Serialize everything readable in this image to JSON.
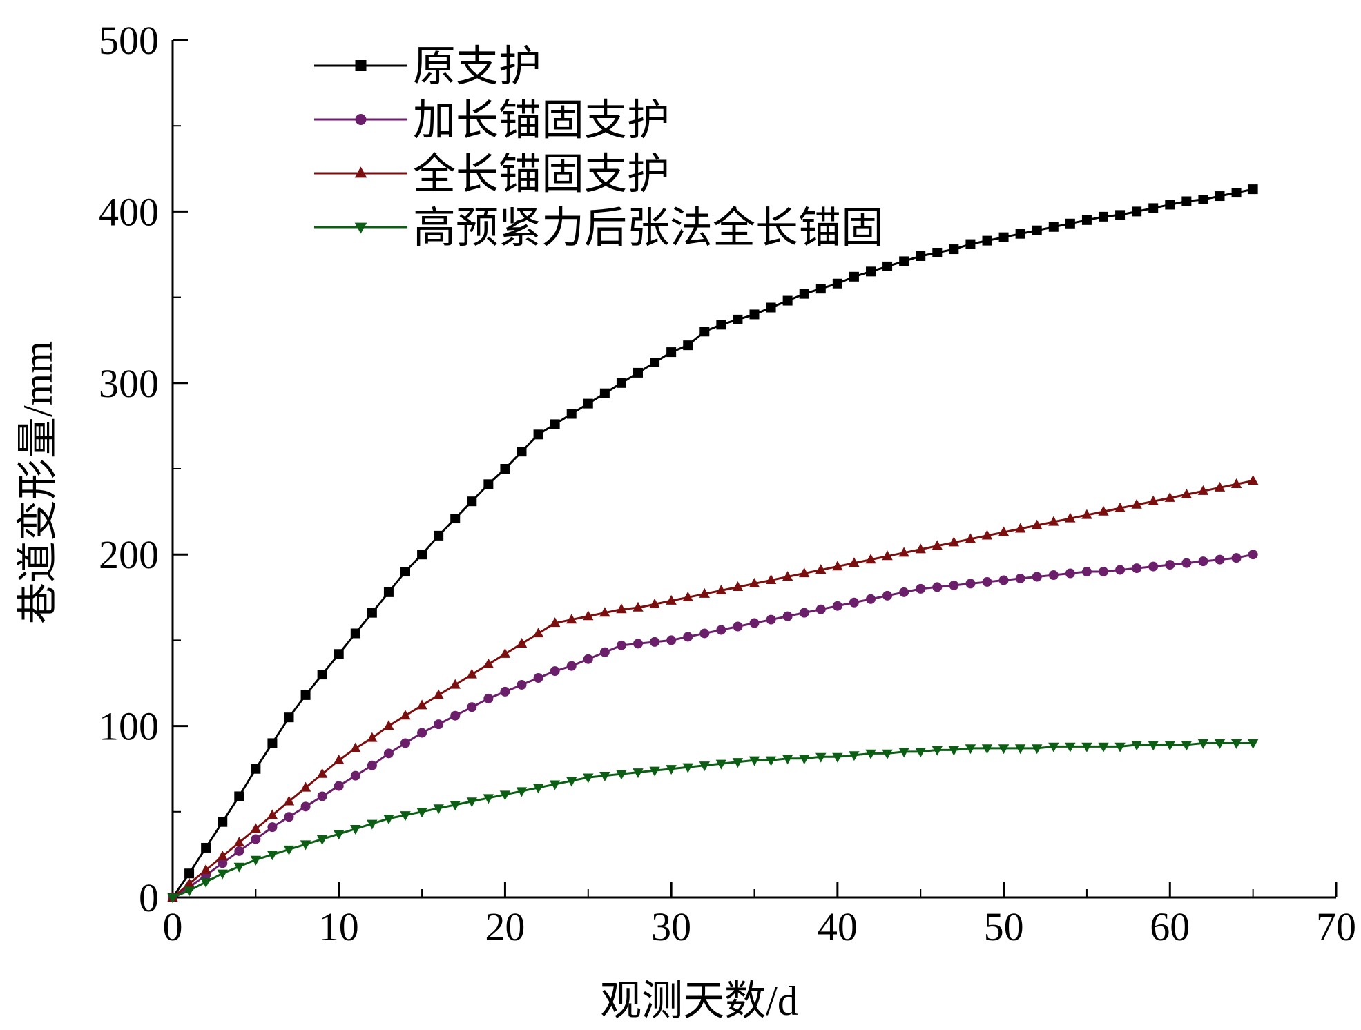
{
  "chart_data": {
    "type": "line",
    "xlabel": "观测天数/d",
    "ylabel": "巷道变形量/mm",
    "xlim": [
      0,
      70
    ],
    "ylim": [
      0,
      500
    ],
    "xticks": [
      "0",
      "10",
      "20",
      "30",
      "40",
      "50",
      "60",
      "70"
    ],
    "yticks": [
      "0",
      "100",
      "200",
      "300",
      "400",
      "500"
    ],
    "grid": false,
    "legend_position": "top-left",
    "x": [
      0,
      1,
      2,
      3,
      4,
      5,
      6,
      7,
      8,
      9,
      10,
      11,
      12,
      13,
      14,
      15,
      16,
      17,
      18,
      19,
      20,
      21,
      22,
      23,
      24,
      25,
      26,
      27,
      28,
      29,
      30,
      31,
      32,
      33,
      34,
      35,
      36,
      37,
      38,
      39,
      40,
      41,
      42,
      43,
      44,
      45,
      46,
      47,
      48,
      49,
      50,
      51,
      52,
      53,
      54,
      55,
      56,
      57,
      58,
      59,
      60,
      61,
      62,
      63,
      64,
      65
    ],
    "series": [
      {
        "name": "原支护",
        "color": "#000000",
        "marker": "square",
        "values": [
          0,
          14,
          29,
          44,
          59,
          75,
          90,
          105,
          118,
          130,
          142,
          154,
          166,
          178,
          190,
          200,
          211,
          221,
          231,
          241,
          250,
          260,
          270,
          276,
          282,
          288,
          294,
          300,
          306,
          312,
          318,
          322,
          330,
          334,
          337,
          340,
          344,
          348,
          352,
          355,
          358,
          362,
          365,
          368,
          371,
          374,
          376,
          378,
          381,
          383,
          385,
          387,
          389,
          391,
          393,
          395,
          397,
          398,
          400,
          402,
          404,
          406,
          407,
          409,
          411,
          413
        ]
      },
      {
        "name": "加长锚固支护",
        "color": "#6B1F6B",
        "marker": "circle",
        "values": [
          0,
          6,
          13,
          20,
          27,
          34,
          41,
          47,
          53,
          59,
          65,
          71,
          77,
          84,
          90,
          96,
          101,
          106,
          111,
          116,
          120,
          124,
          128,
          132,
          135,
          139,
          143,
          147,
          148,
          149,
          150,
          152,
          154,
          156,
          158,
          160,
          162,
          164,
          166,
          168,
          170,
          172,
          174,
          176,
          178,
          180,
          181,
          182,
          183,
          184,
          185,
          186,
          187,
          188,
          189,
          190,
          190,
          191,
          192,
          193,
          194,
          195,
          196,
          197,
          198,
          200
        ]
      },
      {
        "name": "全长锚固支护",
        "color": "#7B0F0F",
        "marker": "triangle-up",
        "values": [
          0,
          8,
          16,
          24,
          32,
          40,
          48,
          56,
          64,
          72,
          80,
          87,
          93,
          100,
          106,
          112,
          118,
          124,
          130,
          136,
          142,
          148,
          154,
          160,
          162,
          164,
          166,
          168,
          169,
          171,
          173,
          175,
          177,
          179,
          181,
          183,
          185,
          187,
          189,
          191,
          193,
          195,
          197,
          199,
          201,
          203,
          205,
          207,
          209,
          211,
          213,
          215,
          217,
          219,
          221,
          223,
          225,
          227,
          229,
          231,
          233,
          235,
          237,
          239,
          241,
          243
        ]
      },
      {
        "name": "高预紧力后张法全长锚固",
        "color": "#0B5E14",
        "marker": "triangle-down",
        "values": [
          0,
          4,
          9,
          14,
          18,
          22,
          25,
          28,
          31,
          34,
          37,
          40,
          43,
          46,
          48,
          50,
          52,
          54,
          56,
          58,
          60,
          62,
          64,
          66,
          68,
          70,
          71,
          72,
          73,
          74,
          75,
          76,
          77,
          78,
          79,
          80,
          80,
          81,
          81,
          82,
          82,
          83,
          84,
          84,
          85,
          85,
          86,
          86,
          87,
          87,
          87,
          87,
          87,
          88,
          88,
          88,
          88,
          88,
          89,
          89,
          89,
          89,
          90,
          90,
          90,
          90
        ]
      }
    ]
  }
}
